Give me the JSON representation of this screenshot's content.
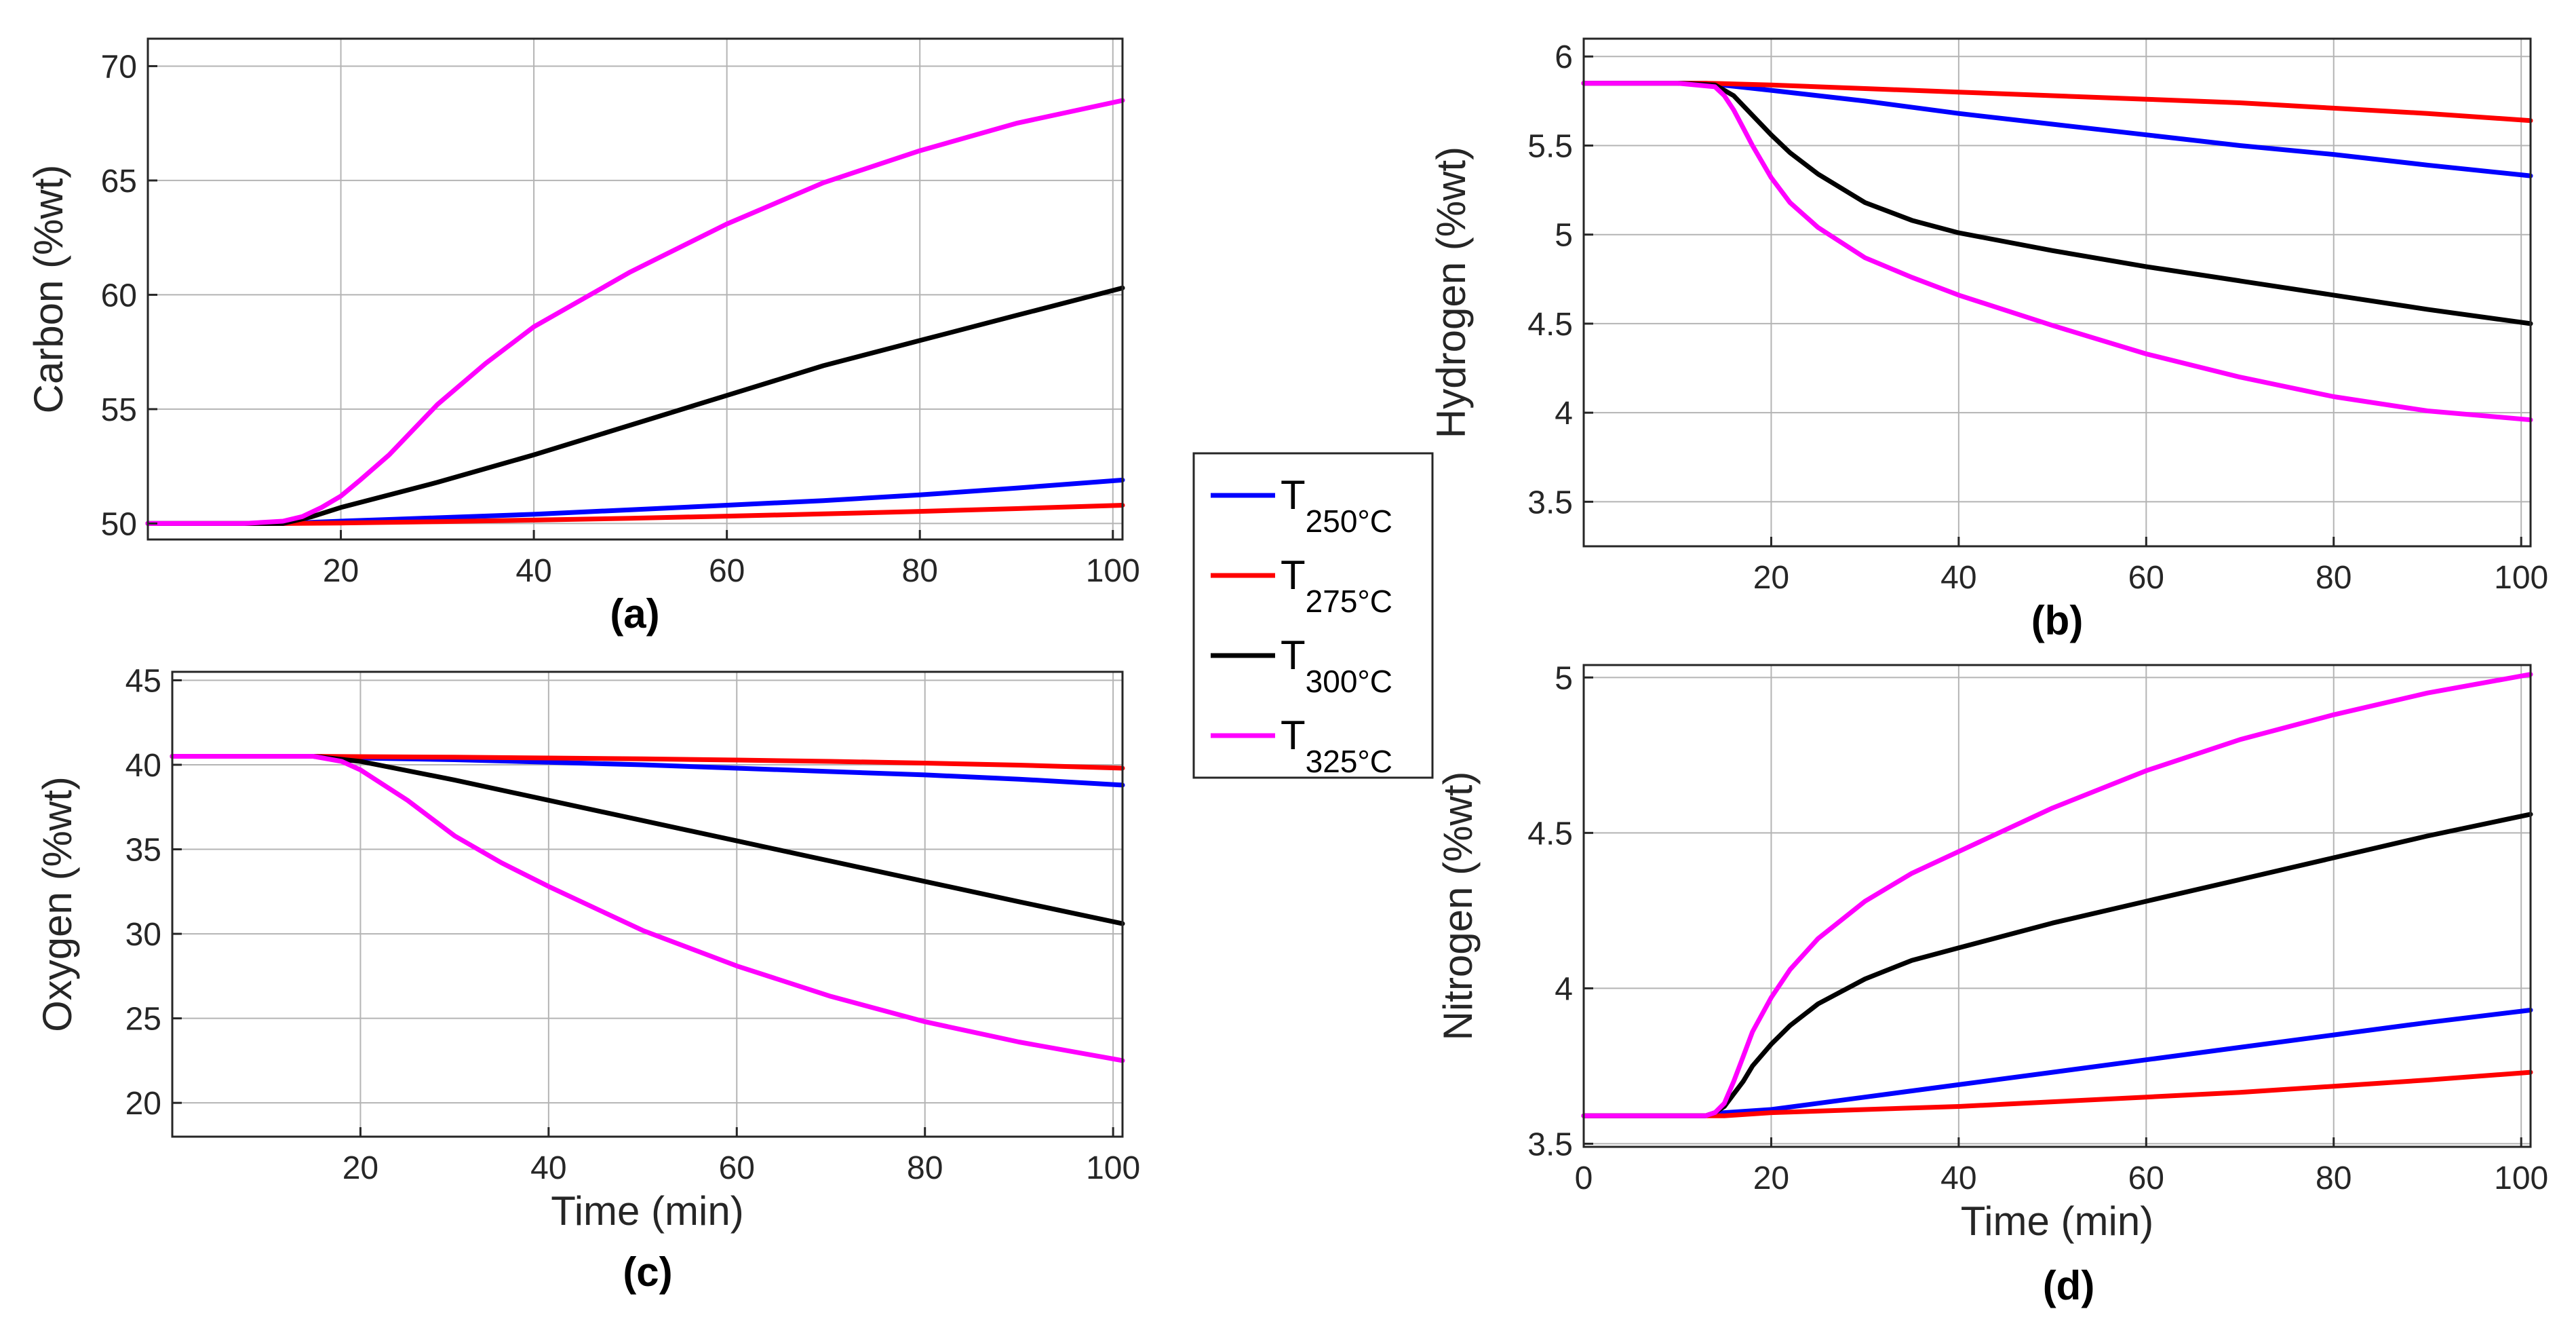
{
  "legend": [
    {
      "symbol": "T",
      "subscript": "250°C",
      "color": "#0000ff"
    },
    {
      "symbol": "T",
      "subscript": "275°C",
      "color": "#ff0000"
    },
    {
      "symbol": "T",
      "subscript": "300°C",
      "color": "#000000"
    },
    {
      "symbol": "T",
      "subscript": "325°C",
      "color": "#ff00ff"
    }
  ],
  "chart_data": [
    {
      "type": "line",
      "panel_label": "(a)",
      "ylabel": "Carbon (%wt)",
      "xlabel": "",
      "xlim": [
        0,
        101
      ],
      "ylim": [
        49.3,
        71.2
      ],
      "xticks": [
        20,
        40,
        60,
        80,
        100
      ],
      "yticks": [
        50,
        55,
        60,
        65,
        70
      ],
      "grid": true,
      "series": [
        {
          "name": "T250°C",
          "color": "#0000ff",
          "x": [
            0,
            10,
            14,
            20,
            30,
            40,
            50,
            60,
            70,
            80,
            90,
            101
          ],
          "y": [
            50,
            50,
            50,
            50.1,
            50.25,
            50.4,
            50.6,
            50.8,
            51.0,
            51.25,
            51.55,
            51.9
          ]
        },
        {
          "name": "T275°C",
          "color": "#ff0000",
          "x": [
            0,
            10,
            14,
            20,
            30,
            40,
            50,
            60,
            70,
            80,
            90,
            101
          ],
          "y": [
            50,
            50,
            50,
            50.02,
            50.08,
            50.15,
            50.23,
            50.32,
            50.42,
            50.53,
            50.65,
            50.8
          ]
        },
        {
          "name": "T300°C",
          "color": "#000000",
          "x": [
            0,
            10,
            14,
            17,
            20,
            30,
            40,
            50,
            60,
            70,
            80,
            90,
            101
          ],
          "y": [
            50,
            50,
            50,
            50.3,
            50.7,
            51.8,
            53.0,
            54.3,
            55.6,
            56.9,
            58.0,
            59.1,
            60.3
          ]
        },
        {
          "name": "T325°C",
          "color": "#ff00ff",
          "x": [
            0,
            10,
            14,
            16,
            18,
            20,
            22,
            25,
            30,
            35,
            40,
            50,
            60,
            70,
            80,
            90,
            101
          ],
          "y": [
            50,
            50,
            50.1,
            50.3,
            50.7,
            51.2,
            51.9,
            53.0,
            55.2,
            57.0,
            58.6,
            61.0,
            63.1,
            64.9,
            66.3,
            67.5,
            68.5
          ]
        }
      ]
    },
    {
      "type": "line",
      "panel_label": "(b)",
      "ylabel": "Hydrogen (%wt)",
      "xlabel": "",
      "xlim": [
        0,
        101
      ],
      "ylim": [
        3.25,
        6.1
      ],
      "xticks": [
        20,
        40,
        60,
        80,
        100
      ],
      "yticks": [
        3.5,
        4,
        4.5,
        5,
        5.5,
        6
      ],
      "grid": true,
      "series": [
        {
          "name": "T250°C",
          "color": "#0000ff",
          "x": [
            0,
            10,
            13,
            20,
            30,
            40,
            50,
            60,
            70,
            80,
            90,
            101
          ],
          "y": [
            5.85,
            5.85,
            5.85,
            5.81,
            5.75,
            5.68,
            5.62,
            5.56,
            5.5,
            5.45,
            5.39,
            5.33
          ]
        },
        {
          "name": "T275°C",
          "color": "#ff0000",
          "x": [
            0,
            10,
            13,
            20,
            30,
            40,
            50,
            60,
            70,
            80,
            90,
            101
          ],
          "y": [
            5.85,
            5.85,
            5.85,
            5.84,
            5.82,
            5.8,
            5.78,
            5.76,
            5.74,
            5.71,
            5.68,
            5.64
          ]
        },
        {
          "name": "T300°C",
          "color": "#000000",
          "x": [
            0,
            10,
            14,
            16,
            18,
            20,
            22,
            25,
            30,
            35,
            40,
            50,
            60,
            70,
            80,
            90,
            101
          ],
          "y": [
            5.85,
            5.85,
            5.84,
            5.78,
            5.67,
            5.56,
            5.46,
            5.34,
            5.18,
            5.08,
            5.01,
            4.91,
            4.82,
            4.74,
            4.66,
            4.58,
            4.5
          ]
        },
        {
          "name": "T325°C",
          "color": "#ff00ff",
          "x": [
            0,
            10,
            14,
            15,
            16,
            17,
            18,
            20,
            22,
            25,
            30,
            35,
            40,
            50,
            60,
            70,
            80,
            90,
            101
          ],
          "y": [
            5.85,
            5.85,
            5.83,
            5.78,
            5.7,
            5.6,
            5.5,
            5.32,
            5.18,
            5.04,
            4.87,
            4.76,
            4.66,
            4.49,
            4.33,
            4.2,
            4.09,
            4.01,
            3.96
          ]
        }
      ]
    },
    {
      "type": "line",
      "panel_label": "(c)",
      "ylabel": "Oxygen (%wt)",
      "xlabel": "Time (min)",
      "xlim": [
        0,
        101
      ],
      "ylim": [
        18,
        45.5
      ],
      "xticks": [
        20,
        40,
        60,
        80,
        100
      ],
      "yticks": [
        20,
        25,
        30,
        35,
        40,
        45
      ],
      "grid": true,
      "series": [
        {
          "name": "T250°C",
          "color": "#0000ff",
          "x": [
            0,
            10,
            15,
            20,
            30,
            40,
            50,
            60,
            70,
            80,
            90,
            101
          ],
          "y": [
            40.5,
            40.5,
            40.5,
            40.4,
            40.3,
            40.15,
            40.0,
            39.8,
            39.6,
            39.4,
            39.15,
            38.8
          ]
        },
        {
          "name": "T275°C",
          "color": "#ff0000",
          "x": [
            0,
            10,
            15,
            20,
            30,
            40,
            50,
            60,
            70,
            80,
            90,
            101
          ],
          "y": [
            40.5,
            40.5,
            40.5,
            40.48,
            40.45,
            40.4,
            40.35,
            40.28,
            40.2,
            40.1,
            39.98,
            39.8
          ]
        },
        {
          "name": "T300°C",
          "color": "#000000",
          "x": [
            0,
            10,
            15,
            20,
            30,
            40,
            50,
            60,
            70,
            80,
            90,
            101
          ],
          "y": [
            40.5,
            40.5,
            40.5,
            40.2,
            39.1,
            37.9,
            36.7,
            35.5,
            34.3,
            33.1,
            31.9,
            30.6
          ]
        },
        {
          "name": "T325°C",
          "color": "#ff00ff",
          "x": [
            0,
            10,
            15,
            18,
            20,
            25,
            30,
            35,
            40,
            50,
            60,
            70,
            80,
            90,
            101
          ],
          "y": [
            40.5,
            40.5,
            40.5,
            40.2,
            39.7,
            37.9,
            35.8,
            34.2,
            32.8,
            30.2,
            28.1,
            26.3,
            24.8,
            23.6,
            22.5
          ]
        }
      ]
    },
    {
      "type": "line",
      "panel_label": "(d)",
      "ylabel": "Nitrogen (%wt)",
      "xlabel": "Time (min)",
      "xlim": [
        0,
        101
      ],
      "ylim": [
        3.49,
        5.04
      ],
      "xticks": [
        0,
        20,
        40,
        60,
        80,
        100
      ],
      "yticks": [
        3.5,
        4,
        4.5,
        5
      ],
      "grid": true,
      "series": [
        {
          "name": "T250°C",
          "color": "#0000ff",
          "x": [
            0,
            10,
            13,
            15,
            20,
            30,
            40,
            50,
            60,
            70,
            80,
            90,
            101
          ],
          "y": [
            3.59,
            3.59,
            3.59,
            3.6,
            3.61,
            3.65,
            3.69,
            3.73,
            3.77,
            3.81,
            3.85,
            3.89,
            3.93
          ]
        },
        {
          "name": "T275°C",
          "color": "#ff0000",
          "x": [
            0,
            10,
            13,
            15,
            20,
            30,
            40,
            50,
            60,
            70,
            80,
            90,
            101
          ],
          "y": [
            3.59,
            3.59,
            3.59,
            3.59,
            3.6,
            3.61,
            3.62,
            3.635,
            3.65,
            3.665,
            3.685,
            3.705,
            3.73
          ]
        },
        {
          "name": "T300°C",
          "color": "#000000",
          "x": [
            0,
            10,
            13,
            14,
            15,
            16,
            17,
            18,
            20,
            22,
            25,
            30,
            35,
            40,
            50,
            60,
            70,
            80,
            90,
            101
          ],
          "y": [
            3.59,
            3.59,
            3.59,
            3.6,
            3.62,
            3.66,
            3.7,
            3.75,
            3.82,
            3.88,
            3.95,
            4.03,
            4.09,
            4.13,
            4.21,
            4.28,
            4.35,
            4.42,
            4.49,
            4.56
          ]
        },
        {
          "name": "T325°C",
          "color": "#ff00ff",
          "x": [
            0,
            10,
            13,
            14,
            15,
            16,
            17,
            18,
            20,
            22,
            25,
            30,
            35,
            40,
            50,
            60,
            70,
            80,
            90,
            101
          ],
          "y": [
            3.59,
            3.59,
            3.59,
            3.6,
            3.63,
            3.7,
            3.78,
            3.86,
            3.97,
            4.06,
            4.16,
            4.28,
            4.37,
            4.44,
            4.58,
            4.7,
            4.8,
            4.88,
            4.95,
            5.01
          ]
        }
      ]
    }
  ]
}
